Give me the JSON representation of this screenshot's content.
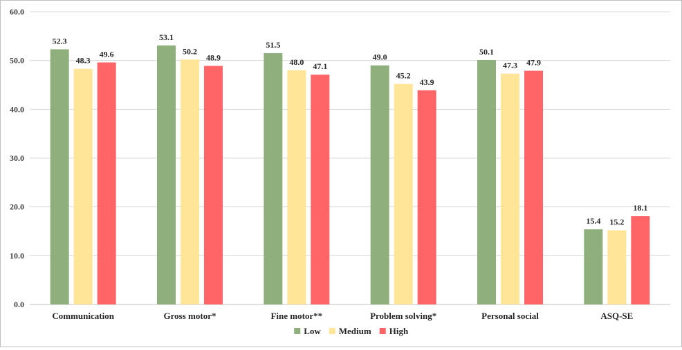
{
  "chart_data": {
    "type": "bar",
    "title": "",
    "xlabel": "",
    "ylabel": "",
    "ylim": [
      0,
      60
    ],
    "yticks": [
      0,
      10,
      20,
      30,
      40,
      50,
      60
    ],
    "ytick_labels": [
      "0.0",
      "10.0",
      "20.0",
      "30.0",
      "40.0",
      "50.0",
      "60.0"
    ],
    "grid": true,
    "legend_position": "bottom-center",
    "categories": [
      "Communication",
      "Gross motor*",
      "Fine motor**",
      "Problem solving*",
      "Personal social",
      "ASQ-SE"
    ],
    "series": [
      {
        "name": "Low",
        "color": "#8fb07d",
        "values": [
          52.3,
          53.1,
          51.5,
          49.0,
          50.1,
          15.4
        ],
        "labels": [
          "52.3",
          "53.1",
          "51.5",
          "49.0",
          "50.1",
          "15.4"
        ]
      },
      {
        "name": "Medium",
        "color": "#ffe597",
        "values": [
          48.3,
          50.2,
          48.0,
          45.2,
          47.3,
          15.2
        ],
        "labels": [
          "48.3",
          "50.2",
          "48.0",
          "45.2",
          "47.3",
          "15.2"
        ]
      },
      {
        "name": "High",
        "color": "#ff6466",
        "values": [
          49.6,
          48.9,
          47.1,
          43.9,
          47.9,
          18.1
        ],
        "labels": [
          "49.6",
          "48.9",
          "47.1",
          "43.9",
          "47.9",
          "18.1"
        ]
      }
    ]
  }
}
